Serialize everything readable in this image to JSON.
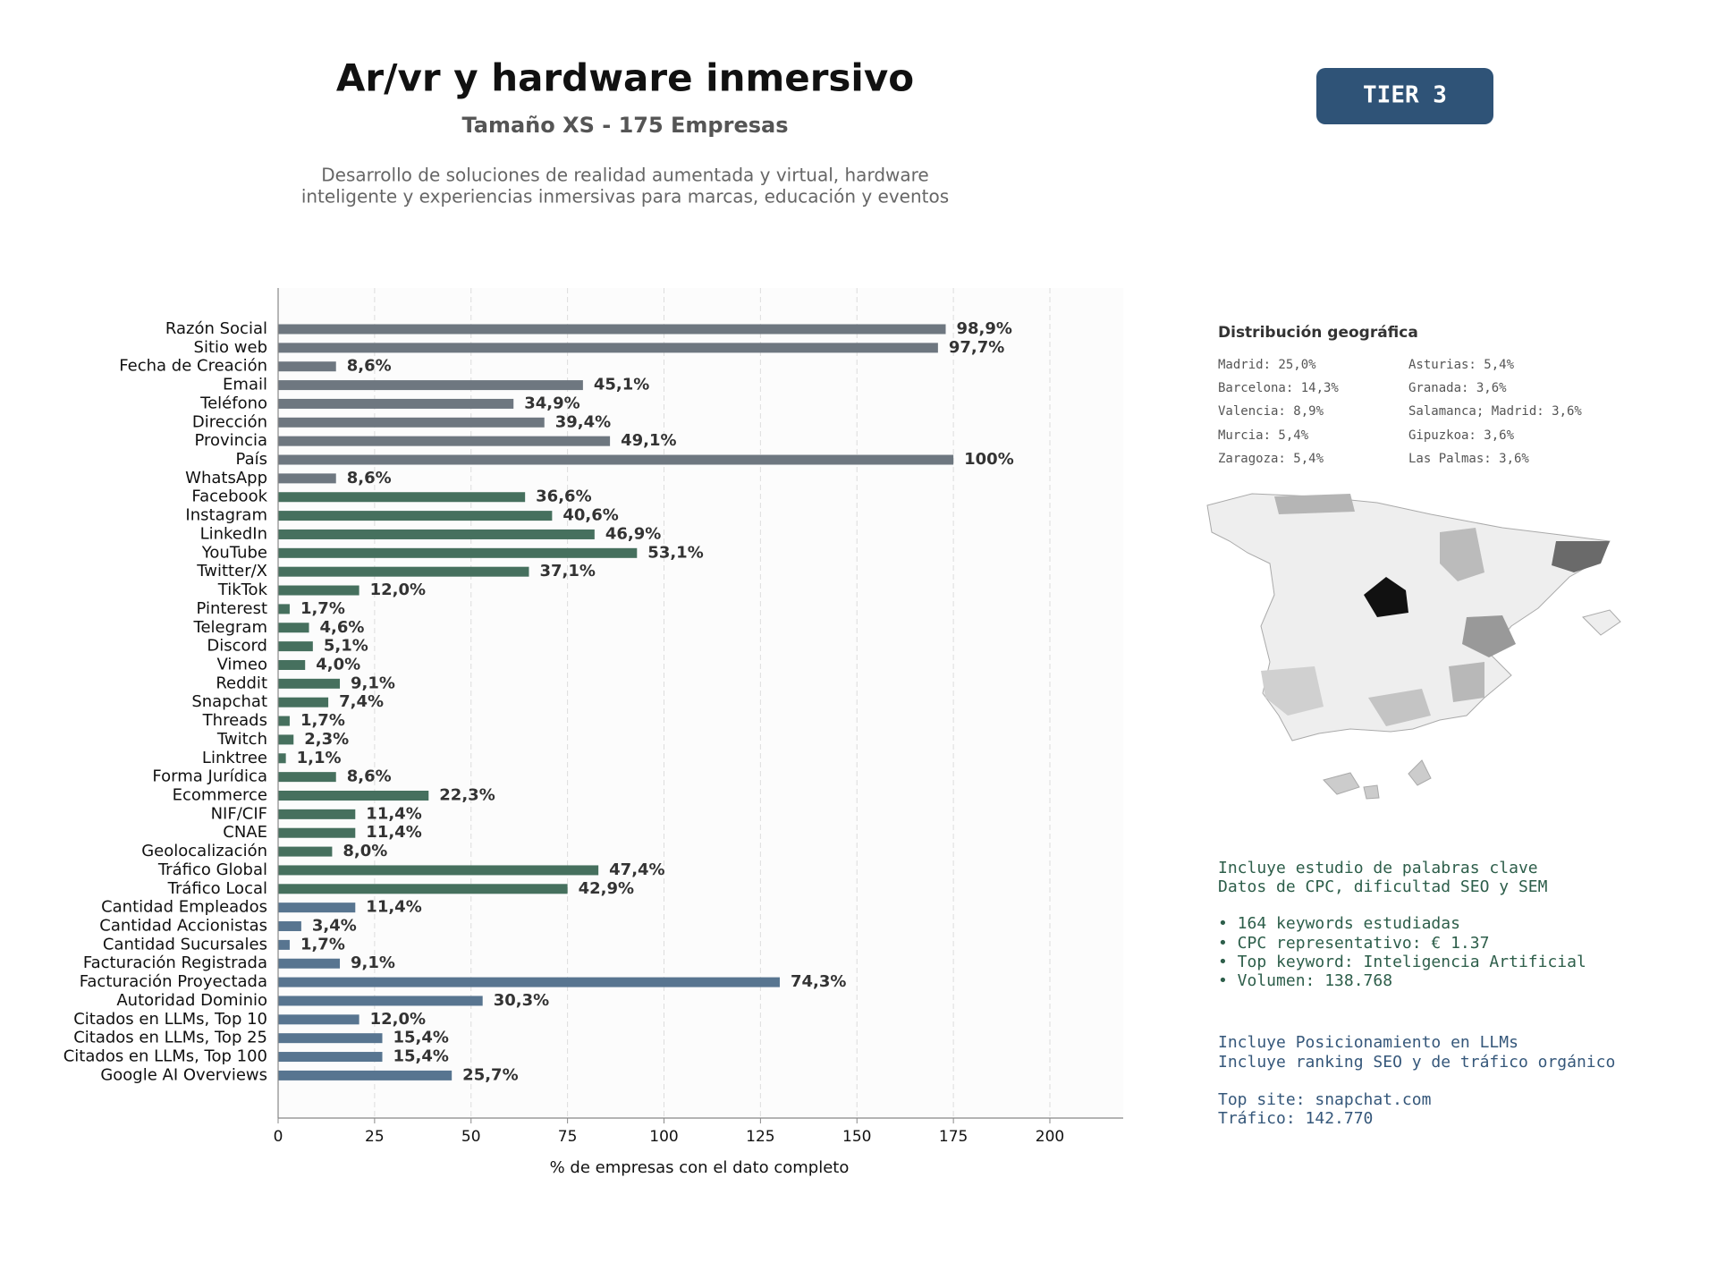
{
  "header": {
    "title": "Ar/vr y hardware inmersivo",
    "subtitle": "Tamaño XS - 175 Empresas",
    "description": [
      "Desarrollo de soluciones de realidad aumentada y virtual, hardware",
      "inteligente y experiencias inmersivas para marcas, educación y eventos"
    ],
    "badge": "TIER 3"
  },
  "chart_data": {
    "type": "bar",
    "orientation": "horizontal",
    "categories": [
      "Razón Social",
      "Sitio web",
      "Fecha de Creación",
      "Email",
      "Teléfono",
      "Dirección",
      "Provincia",
      "País",
      "WhatsApp",
      "Facebook",
      "Instagram",
      "LinkedIn",
      "YouTube",
      "Twitter/X",
      "TikTok",
      "Pinterest",
      "Telegram",
      "Discord",
      "Vimeo",
      "Reddit",
      "Snapchat",
      "Threads",
      "Twitch",
      "Linktree",
      "Forma Jurídica",
      "Ecommerce",
      "NIF/CIF",
      "CNAE",
      "Geolocalización",
      "Tráfico Global",
      "Tráfico Local",
      "Cantidad Empleados",
      "Cantidad Accionistas",
      "Cantidad Sucursales",
      "Facturación Registrada",
      "Facturación Proyectada",
      "Autoridad Dominio",
      "Citados en LLMs, Top 10",
      "Citados en LLMs, Top 25",
      "Citados en LLMs, Top 100",
      "Google AI Overviews"
    ],
    "values": [
      173,
      171,
      15,
      79,
      61,
      69,
      86,
      175,
      15,
      64,
      71,
      82,
      93,
      65,
      21,
      3,
      8,
      9,
      7,
      16,
      13,
      3,
      4,
      2,
      15,
      39,
      20,
      20,
      14,
      83,
      75,
      20,
      6,
      3,
      16,
      130,
      53,
      21,
      27,
      27,
      45
    ],
    "value_labels": [
      "98,9%",
      "97,7%",
      "8,6%",
      "45,1%",
      "34,9%",
      "39,4%",
      "49,1%",
      "100%",
      "8,6%",
      "36,6%",
      "40,6%",
      "46,9%",
      "53,1%",
      "37,1%",
      "12,0%",
      "1,7%",
      "4,6%",
      "5,1%",
      "4,0%",
      "9,1%",
      "7,4%",
      "1,7%",
      "2,3%",
      "1,1%",
      "8,6%",
      "22,3%",
      "11,4%",
      "11,4%",
      "8,0%",
      "47,4%",
      "42,9%",
      "11,4%",
      "3,4%",
      "1,7%",
      "9,1%",
      "74,3%",
      "30,3%",
      "12,0%",
      "15,4%",
      "15,4%",
      "25,7%"
    ],
    "colors": [
      "#6e7780",
      "#6e7780",
      "#6e7780",
      "#6e7780",
      "#6e7780",
      "#6e7780",
      "#6e7780",
      "#6e7780",
      "#6e7780",
      "#46705e",
      "#46705e",
      "#46705e",
      "#46705e",
      "#46705e",
      "#46705e",
      "#46705e",
      "#46705e",
      "#46705e",
      "#46705e",
      "#46705e",
      "#46705e",
      "#46705e",
      "#46705e",
      "#46705e",
      "#46705e",
      "#46705e",
      "#46705e",
      "#46705e",
      "#46705e",
      "#46705e",
      "#46705e",
      "#587590",
      "#587590",
      "#587590",
      "#587590",
      "#587590",
      "#587590",
      "#587590",
      "#587590",
      "#587590",
      "#587590"
    ],
    "xlim": [
      0,
      219
    ],
    "xticks": [
      0,
      25,
      50,
      75,
      100,
      125,
      150,
      175,
      200
    ],
    "grid": true,
    "xlabel": "% de empresas con el dato completo"
  },
  "geo": {
    "title": "Distribución geográfica",
    "items": [
      "Madrid: 25,0%",
      "Barcelona: 14,3%",
      "Valencia: 8,9%",
      "Murcia: 5,4%",
      "Zaragoza: 5,4%",
      "Asturias: 5,4%",
      "Granada: 3,6%",
      "Salamanca; Madrid: 3,6%",
      "Gipuzkoa: 3,6%",
      "Las Palmas: 3,6%"
    ]
  },
  "keywords": [
    "Incluye estudio de palabras clave",
    "Datos de CPC, dificultad SEO y SEM",
    "• 164 keywords estudiadas",
    "• CPC representativo: € 1.37",
    "• Top keyword: Inteligencia Artificial",
    "• Volumen: 138.768"
  ],
  "llm": [
    "Incluye Posicionamiento en LLMs",
    "Incluye ranking SEO y de tráfico orgánico",
    "Top site: snapchat.com",
    "Tráfico: 142.770"
  ]
}
